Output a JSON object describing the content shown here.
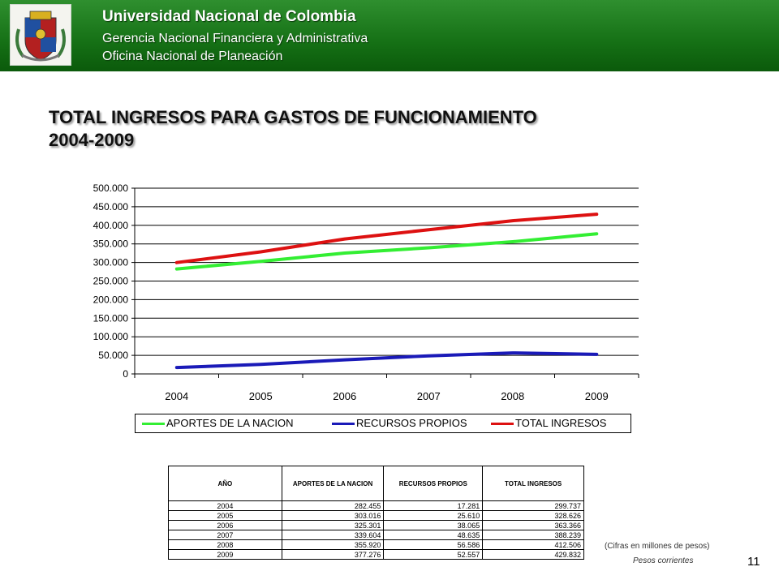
{
  "header": {
    "university": "Universidad Nacional de Colombia",
    "department": "Gerencia Nacional Financiera y Administrativa",
    "office": "Oficina Nacional de Planeación"
  },
  "slide": {
    "title_line1": "TOTAL INGRESOS PARA GASTOS DE FUNCIONAMIENTO",
    "title_line2": "2004-2009",
    "note_units": "(Cifras en millones de pesos)",
    "note_prices": "Pesos corrientes",
    "page_number": "11"
  },
  "chart_data": {
    "type": "line",
    "categories": [
      "2004",
      "2005",
      "2006",
      "2007",
      "2008",
      "2009"
    ],
    "series": [
      {
        "name": "APORTES DE LA NACION",
        "color": "#33ee33",
        "values": [
          282455,
          303016,
          325301,
          339604,
          355920,
          377276
        ]
      },
      {
        "name": "RECURSOS PROPIOS",
        "color": "#1a1ab8",
        "values": [
          17281,
          25610,
          38065,
          48635,
          56586,
          52557
        ]
      },
      {
        "name": "TOTAL INGRESOS",
        "color": "#dd1111",
        "values": [
          299737,
          328626,
          363366,
          388239,
          412506,
          429832
        ]
      }
    ],
    "ylim": [
      0,
      500000
    ],
    "yticks": [
      0,
      50000,
      100000,
      150000,
      200000,
      250000,
      300000,
      350000,
      400000,
      450000,
      500000
    ],
    "ytick_labels": [
      "0",
      "50.000",
      "100.000",
      "150.000",
      "200.000",
      "250.000",
      "300.000",
      "350.000",
      "400.000",
      "450.000",
      "500.000"
    ],
    "grid": true,
    "legend": "bottom"
  },
  "table": {
    "headers": [
      "AÑO",
      "APORTES DE LA NACION",
      "RECURSOS PROPIOS",
      "TOTAL INGRESOS"
    ],
    "rows": [
      [
        "2004",
        "282.455",
        "17.281",
        "299.737"
      ],
      [
        "2005",
        "303.016",
        "25.610",
        "328.626"
      ],
      [
        "2006",
        "325.301",
        "38.065",
        "363.366"
      ],
      [
        "2007",
        "339.604",
        "48.635",
        "388.239"
      ],
      [
        "2008",
        "355.920",
        "56.586",
        "412.506"
      ],
      [
        "2009",
        "377.276",
        "52.557",
        "429.832"
      ]
    ]
  },
  "colors": {
    "header_green": "#157015",
    "header_text": "#ffffff"
  },
  "icons": {
    "logo": "university-coat-of-arms-icon"
  }
}
